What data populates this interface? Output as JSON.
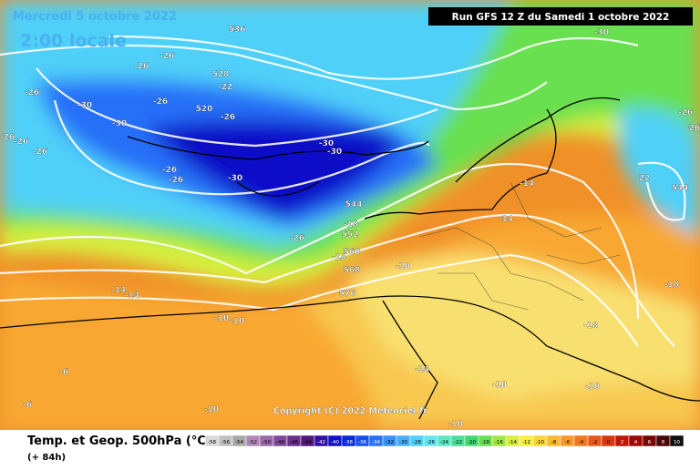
{
  "header": {
    "valid_date": "Mercredi 5 octobre 2022",
    "local_time": "2:00 locale",
    "run_info": "Run GFS 12 Z du Samedi 1 octobre 2022"
  },
  "copyright": "Copyright (C) 2022 Meteociel.fr",
  "footer": {
    "title": "Temp. et Geop. 500hPa (°C)",
    "lead_time": "(+ 84h)"
  },
  "map_labels": [
    "-30",
    "536",
    "-26",
    "-26",
    "528",
    "-22",
    "-26",
    "-26",
    "520",
    "-26",
    "-30",
    "-30",
    "-26",
    "-26",
    "-26",
    "-30",
    "-30",
    "-26",
    "-26",
    "-30",
    "544",
    "-18",
    "552",
    "-26",
    "560",
    "-14",
    "568",
    "-10",
    "576",
    "-14",
    "-14",
    "-10",
    "-10",
    "-14",
    "-14",
    "22",
    "544",
    "-26",
    "-26",
    "-18",
    "-18",
    "-14",
    "-10",
    "-10",
    "-6",
    "-6",
    "-10",
    "-10"
  ],
  "scale": {
    "values": [
      -58,
      -56,
      -54,
      -52,
      -50,
      -48,
      -46,
      -44,
      -42,
      -40,
      -38,
      -36,
      -34,
      -32,
      -30,
      -28,
      -26,
      -24,
      -22,
      -20,
      -18,
      -16,
      -14,
      -12,
      -10,
      -8,
      -6,
      -4,
      -2,
      0,
      2,
      4,
      6,
      8,
      10
    ],
    "colors": [
      "#d8d8d8",
      "#c0c0c0",
      "#a8a8a8",
      "#b088b8",
      "#9868a8",
      "#804898",
      "#683088",
      "#501878",
      "#3010a0",
      "#1010c8",
      "#0828e0",
      "#1850f0",
      "#2870f8",
      "#3890f8",
      "#48b0f8",
      "#50d0f8",
      "#60e8f0",
      "#58e8c0",
      "#48e098",
      "#40d870",
      "#68e050",
      "#a0e840",
      "#d8f040",
      "#f8f040",
      "#f8d838",
      "#f8b830",
      "#f89828",
      "#f07820",
      "#e85818",
      "#d83810",
      "#c01808",
      "#a00808",
      "#780808",
      "#480808",
      "#101010"
    ]
  }
}
